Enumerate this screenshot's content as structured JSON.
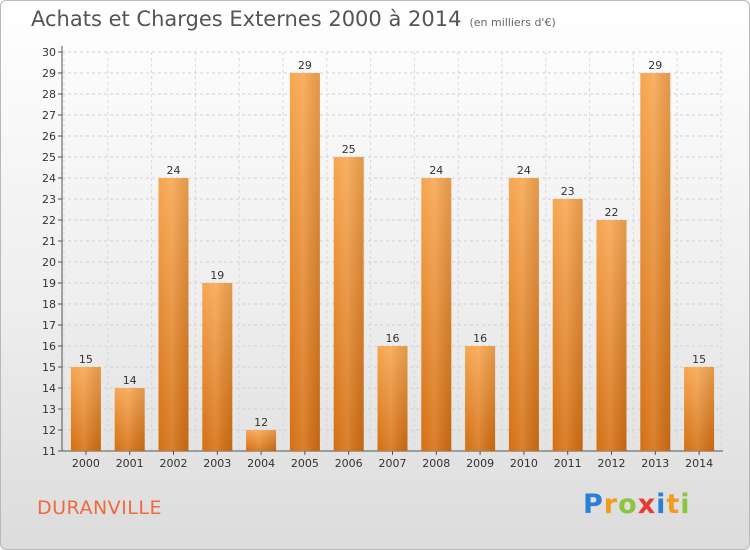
{
  "title": "Achats et Charges Externes 2000 à 2014",
  "subtitle": "(en milliers d'€)",
  "city": "DURANVILLE",
  "logo": {
    "letters": [
      {
        "ch": "P",
        "color": "#2b7fd4"
      },
      {
        "ch": "r",
        "color": "#f29b1d"
      },
      {
        "ch": "o",
        "color": "#8bc43f"
      },
      {
        "ch": "x",
        "color": "#e53a2f"
      },
      {
        "ch": "i",
        "color": "#2b7fd4"
      },
      {
        "ch": "t",
        "color": "#f29b1d"
      },
      {
        "ch": "i",
        "color": "#8bc43f"
      }
    ]
  },
  "chart_data": {
    "type": "bar",
    "categories": [
      "2000",
      "2001",
      "2002",
      "2003",
      "2004",
      "2005",
      "2006",
      "2007",
      "2008",
      "2009",
      "2010",
      "2011",
      "2012",
      "2013",
      "2014"
    ],
    "values": [
      15,
      14,
      24,
      19,
      12,
      29,
      25,
      16,
      24,
      16,
      24,
      23,
      22,
      29,
      15
    ],
    "ylim": [
      11,
      30
    ],
    "yticks": [
      11,
      12,
      13,
      14,
      15,
      16,
      17,
      18,
      19,
      20,
      21,
      22,
      23,
      24,
      25,
      26,
      27,
      28,
      29,
      30
    ],
    "grid": true,
    "bar_color": "#f0922f"
  }
}
